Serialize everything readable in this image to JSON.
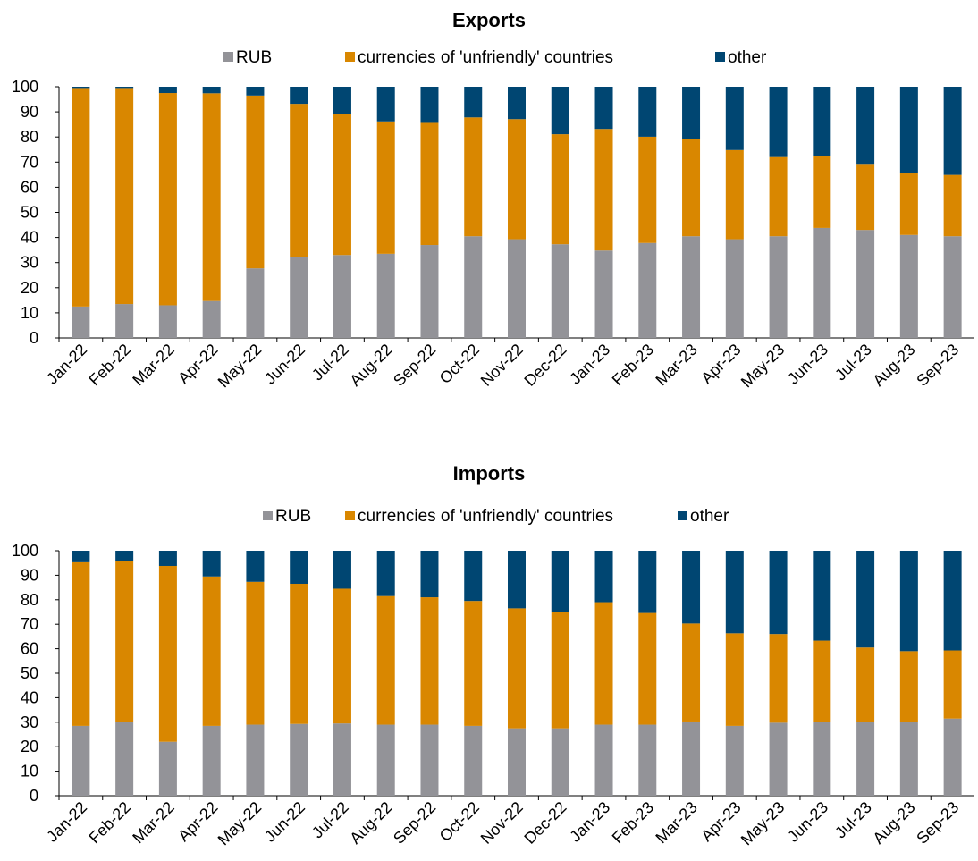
{
  "chart_data": [
    {
      "type": "bar",
      "stacked": true,
      "title": "Exports",
      "categories": [
        "Jan-22",
        "Feb-22",
        "Mar-22",
        "Apr-22",
        "May-22",
        "Jun-22",
        "Jul-22",
        "Aug-22",
        "Sep-22",
        "Oct-22",
        "Nov-22",
        "Dec-22",
        "Jan-23",
        "Feb-23",
        "Mar-23",
        "Apr-23",
        "May-23",
        "Jun-23",
        "Jul-23",
        "Aug-23",
        "Sep-23"
      ],
      "series": [
        {
          "name": "RUB",
          "color": "#939398",
          "values": [
            12.5,
            13.5,
            13,
            14.7,
            27.7,
            32.3,
            33,
            33.5,
            37,
            40.5,
            39.3,
            37.3,
            34.8,
            37.8,
            40.5,
            39.3,
            40.5,
            43.8,
            43,
            41,
            40.5
          ]
        },
        {
          "name": "currencies of 'unfriendly' countries",
          "color": "#d98700",
          "values": [
            87,
            86,
            84.5,
            82.7,
            68.8,
            60.9,
            56.2,
            52.7,
            48.6,
            47.3,
            47.8,
            43.8,
            48.4,
            42.3,
            38.8,
            35.5,
            31.5,
            28.8,
            26.3,
            24.6,
            24.4
          ]
        },
        {
          "name": "other",
          "color": "#004672",
          "values": [
            0.5,
            0.5,
            2.5,
            2.6,
            3.5,
            6.8,
            10.8,
            13.8,
            14.4,
            12.2,
            12.9,
            18.9,
            16.8,
            19.9,
            20.7,
            25.2,
            28,
            27.4,
            30.7,
            34.4,
            35.1
          ]
        }
      ],
      "yticks": [
        "0",
        "10",
        "20",
        "30",
        "40",
        "50",
        "60",
        "70",
        "80",
        "90",
        "100"
      ],
      "ylim": [
        0,
        100
      ],
      "legend": "top-center",
      "grid": false
    },
    {
      "type": "bar",
      "stacked": true,
      "title": "Imports",
      "categories": [
        "Jan-22",
        "Feb-22",
        "Mar-22",
        "Apr-22",
        "May-22",
        "Jun-22",
        "Jul-22",
        "Aug-22",
        "Sep-22",
        "Oct-22",
        "Nov-22",
        "Dec-22",
        "Jan-23",
        "Feb-23",
        "Mar-23",
        "Apr-23",
        "May-23",
        "Jun-23",
        "Jul-23",
        "Aug-23",
        "Sep-23"
      ],
      "series": [
        {
          "name": "RUB",
          "color": "#939398",
          "values": [
            28.5,
            30,
            22,
            28.5,
            29,
            29.3,
            29.5,
            29,
            29,
            28.5,
            27.5,
            27.5,
            29,
            29,
            30.3,
            28.5,
            29.8,
            30,
            30,
            30,
            31.5
          ]
        },
        {
          "name": "currencies of 'unfriendly' countries",
          "color": "#d98700",
          "values": [
            66.8,
            65.8,
            71.8,
            61,
            58.3,
            57.2,
            55,
            52.5,
            52,
            51,
            49,
            47.4,
            50,
            45.6,
            40,
            37.8,
            36.2,
            33.3,
            30.5,
            29,
            27.8
          ]
        },
        {
          "name": "other",
          "color": "#004672",
          "values": [
            4.7,
            4.2,
            6.2,
            10.5,
            12.7,
            13.5,
            15.5,
            18.5,
            19,
            20.5,
            23.5,
            25.1,
            21,
            25.4,
            29.7,
            33.7,
            34,
            36.7,
            39.5,
            41,
            40.7
          ]
        }
      ],
      "yticks": [
        "0",
        "10",
        "20",
        "30",
        "40",
        "50",
        "60",
        "70",
        "80",
        "90",
        "100"
      ],
      "ylim": [
        0,
        100
      ],
      "legend": "top-center",
      "grid": false
    }
  ]
}
